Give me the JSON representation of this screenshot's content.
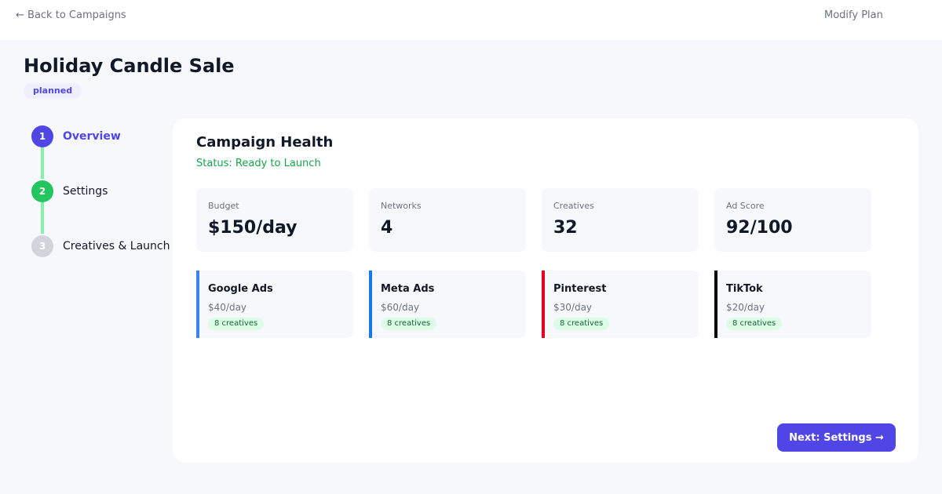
{
  "header": {
    "back_label": "← Back to Campaigns",
    "modify_label": "Modify Plan"
  },
  "campaign": {
    "title": "Holiday Candle Sale",
    "status": "planned"
  },
  "steps": [
    {
      "number": "1",
      "label": "Overview",
      "state": "active",
      "color": "#4f46e5"
    },
    {
      "number": "2",
      "label": "Settings",
      "state": "complete",
      "color": "#22c55e"
    },
    {
      "number": "3",
      "label": "Creatives & Launch",
      "state": "upcoming",
      "color": "#d1d5db"
    }
  ],
  "health": {
    "title": "Campaign Health",
    "status": "Status: Ready to Launch",
    "stats": [
      {
        "label": "Budget",
        "value": "$150/day"
      },
      {
        "label": "Networks",
        "value": "4"
      },
      {
        "label": "Creatives",
        "value": "32"
      },
      {
        "label": "Ad Score",
        "value": "92/100"
      }
    ],
    "networks": [
      {
        "name": "Google Ads",
        "budget": "$40/day",
        "creatives": "8 creatives",
        "color": "#3b82f6"
      },
      {
        "name": "Meta Ads",
        "budget": "$60/day",
        "creatives": "8 creatives",
        "color": "#1877f2"
      },
      {
        "name": "Pinterest",
        "budget": "$30/day",
        "creatives": "8 creatives",
        "color": "#e60023"
      },
      {
        "name": "TikTok",
        "budget": "$20/day",
        "creatives": "8 creatives",
        "color": "#000000"
      }
    ]
  },
  "actions": {
    "next_label": "Next: Settings →"
  }
}
